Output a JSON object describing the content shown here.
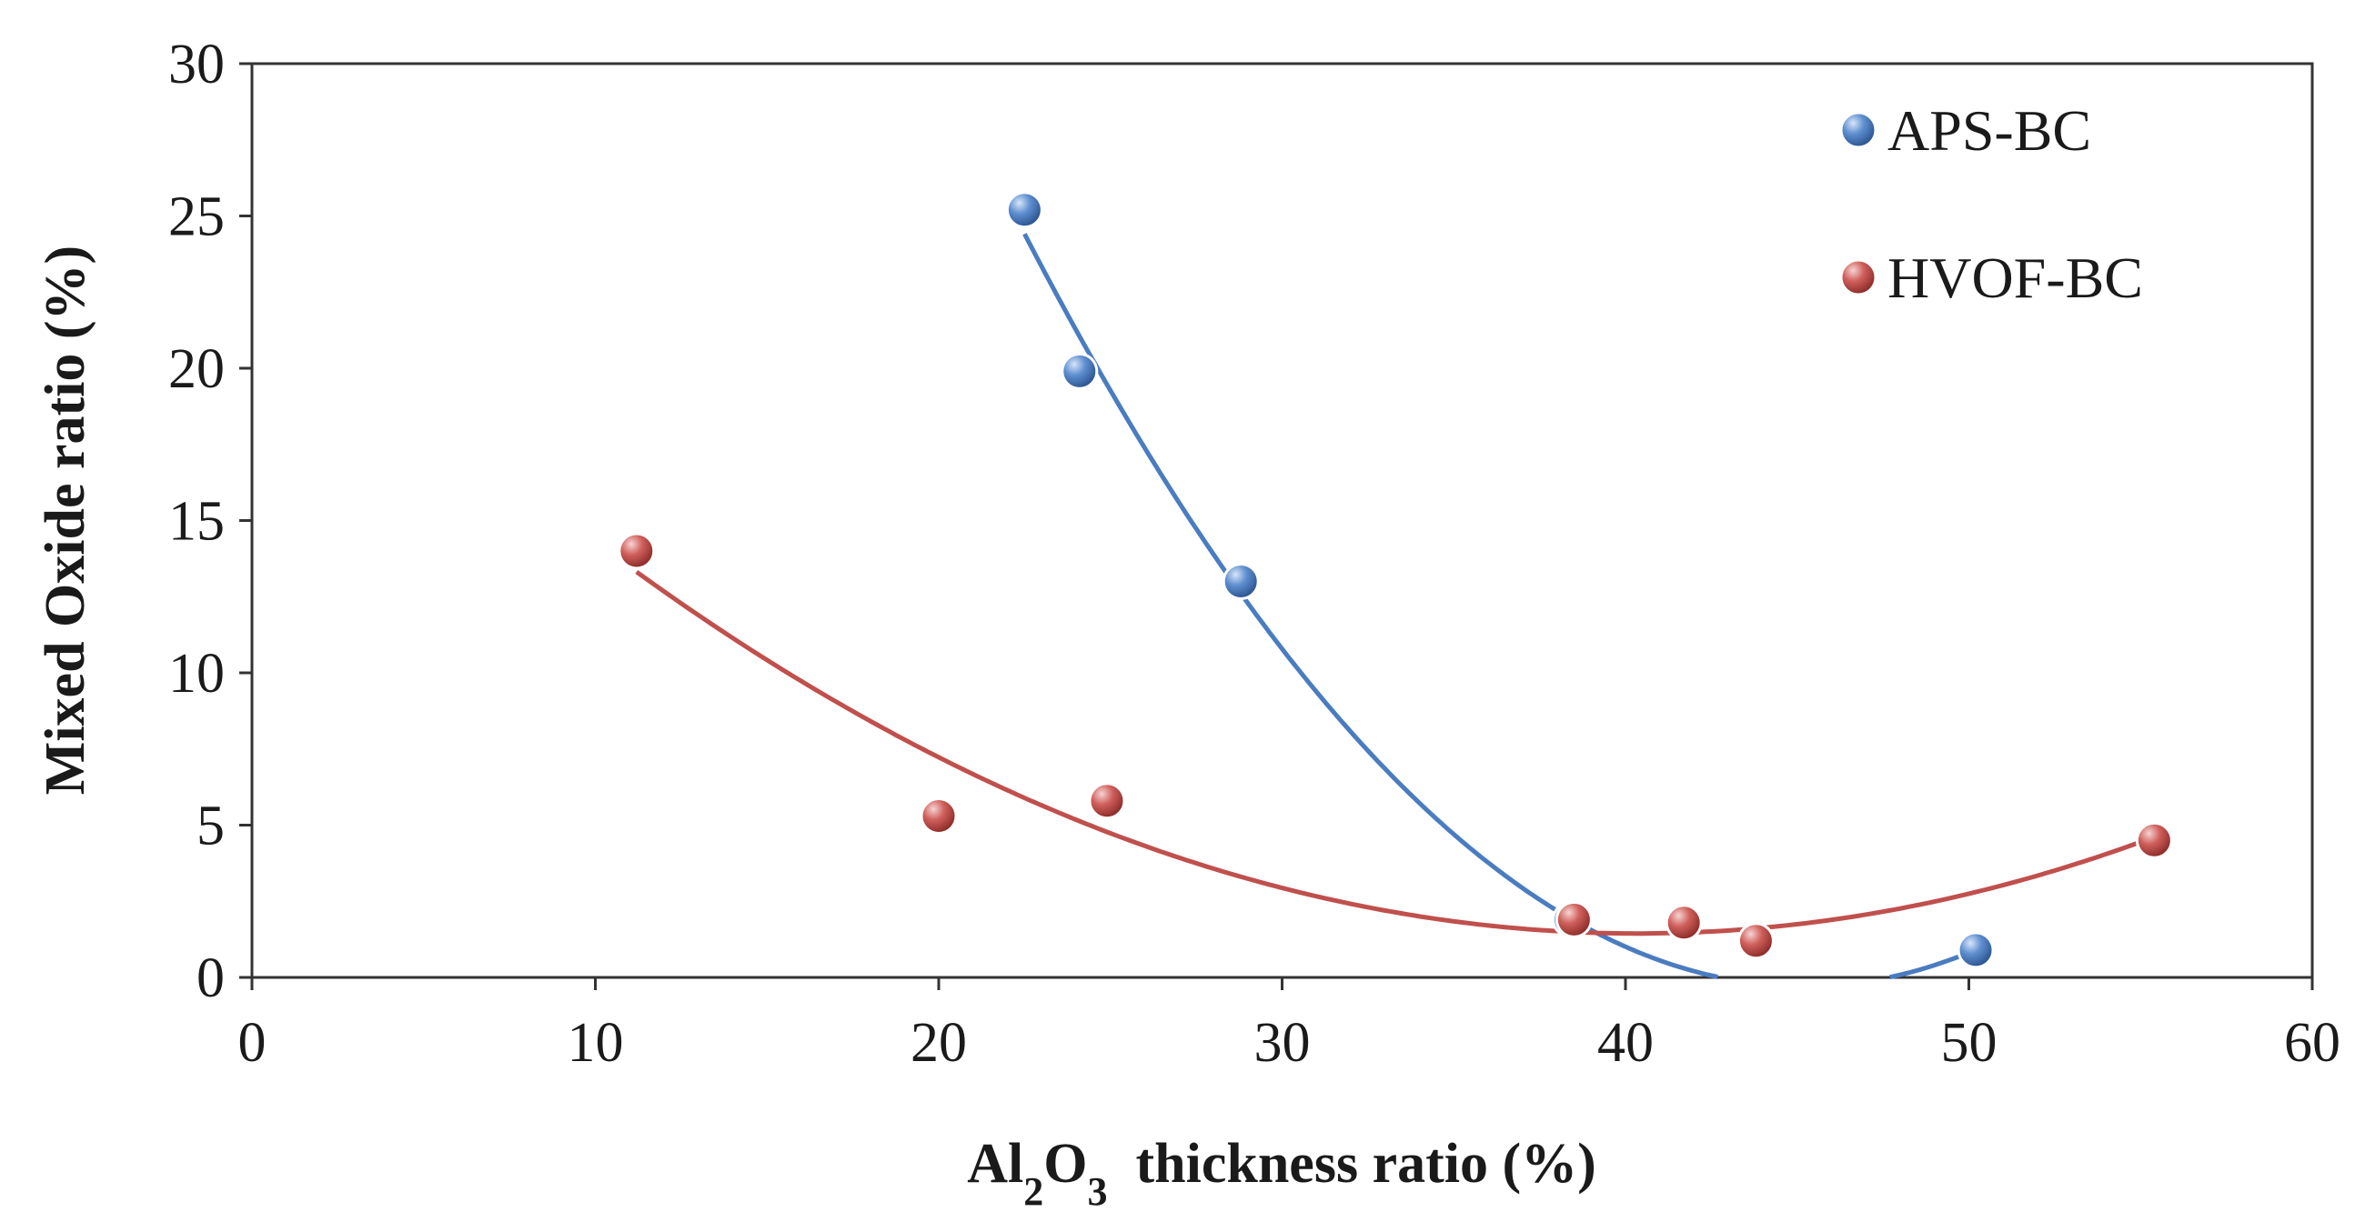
{
  "chart_data": {
    "type": "scatter",
    "title": "",
    "xlabel": {
      "parts": [
        {
          "text": "Al",
          "sub": false
        },
        {
          "text": "2",
          "sub": true
        },
        {
          "text": "O",
          "sub": false
        },
        {
          "text": "3",
          "sub": true
        },
        {
          "text": "  thickness ratio (%)",
          "sub": false
        }
      ]
    },
    "ylabel": "Mixed Oxide ratio  (%)",
    "xlim": [
      0,
      60
    ],
    "ylim": [
      0,
      30
    ],
    "xticks": [
      0,
      10,
      20,
      30,
      40,
      50,
      60
    ],
    "yticks": [
      0,
      5,
      10,
      15,
      20,
      25,
      30
    ],
    "grid": false,
    "legend_position": "top-right",
    "series": [
      {
        "name": "APS-BC",
        "color": "#4a7cc0",
        "points": [
          {
            "x": 22.5,
            "y": 25.2
          },
          {
            "x": 24.1,
            "y": 19.9
          },
          {
            "x": 28.8,
            "y": 13.0
          },
          {
            "x": 38.4,
            "y": 1.9
          },
          {
            "x": 50.2,
            "y": 0.9
          }
        ],
        "trendline": {
          "type": "polynomial-2",
          "x_range": [
            22.5,
            50.5
          ]
        }
      },
      {
        "name": "HVOF-BC",
        "color": "#c0504d",
        "points": [
          {
            "x": 11.2,
            "y": 14.0
          },
          {
            "x": 20.0,
            "y": 5.3
          },
          {
            "x": 24.9,
            "y": 5.8
          },
          {
            "x": 38.5,
            "y": 1.9
          },
          {
            "x": 41.7,
            "y": 1.8
          },
          {
            "x": 43.8,
            "y": 1.2
          },
          {
            "x": 55.4,
            "y": 4.5
          }
        ],
        "trendline": {
          "type": "polynomial-2",
          "x_range": [
            11.2,
            55.4
          ]
        }
      }
    ]
  }
}
